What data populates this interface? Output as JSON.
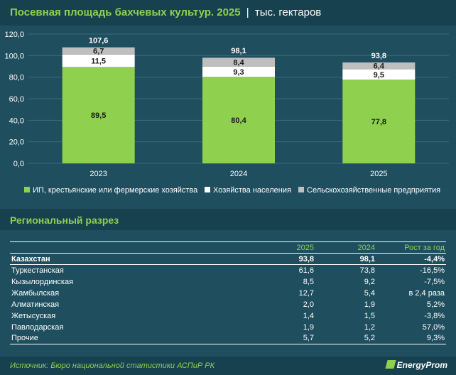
{
  "header": {
    "title": "Посевная площадь бахчевых культур. 2025",
    "separator": "|",
    "unit": "тыс. гектаров"
  },
  "chart_data": {
    "type": "bar",
    "stacked": true,
    "categories": [
      "2023",
      "2024",
      "2025"
    ],
    "series": [
      {
        "name": "ИП, крестьянские или фермерские хозяйства",
        "values": [
          89.5,
          80.4,
          77.8
        ],
        "labels": [
          "89,5",
          "80,4",
          "77,8"
        ],
        "color": "#8fd14f"
      },
      {
        "name": "Хозяйства населения",
        "values": [
          11.5,
          9.3,
          9.5
        ],
        "labels": [
          "11,5",
          "9,3",
          "9,5"
        ],
        "color": "#ffffff"
      },
      {
        "name": "Сельскохозяйственные предприятия",
        "values": [
          6.7,
          8.4,
          6.4
        ],
        "labels": [
          "6,7",
          "8,4",
          "6,4"
        ],
        "color": "#bfbfbf"
      }
    ],
    "totals": [
      "107,6",
      "98,1",
      "93,8"
    ],
    "yticks": [
      "0,0",
      "20,0",
      "40,0",
      "60,0",
      "80,0",
      "100,0",
      "120,0"
    ],
    "ylim": [
      0,
      120
    ],
    "grid": true,
    "legend_position": "bottom"
  },
  "section": {
    "title": "Региональный разрез"
  },
  "table": {
    "headers": [
      "",
      "2025",
      "2024",
      "Рост за год"
    ],
    "rows": [
      {
        "name": "Казахстан",
        "v2025": "93,8",
        "v2024": "98,1",
        "growth": "-4,4%"
      },
      {
        "name": "Туркестанская",
        "v2025": "61,6",
        "v2024": "73,8",
        "growth": "-16,5%"
      },
      {
        "name": "Кызылординская",
        "v2025": "8,5",
        "v2024": "9,2",
        "growth": "-7,5%"
      },
      {
        "name": "Жамбылская",
        "v2025": "12,7",
        "v2024": "5,4",
        "growth": "в 2,4 раза"
      },
      {
        "name": "Алматинская",
        "v2025": "2,0",
        "v2024": "1,9",
        "growth": "5,2%"
      },
      {
        "name": "Жетысуская",
        "v2025": "1,4",
        "v2024": "1,5",
        "growth": "-3,8%"
      },
      {
        "name": "Павлодарская",
        "v2025": "1,9",
        "v2024": "1,2",
        "growth": "57,0%"
      },
      {
        "name": "Прочие",
        "v2025": "5,7",
        "v2024": "5,2",
        "growth": "9,3%"
      }
    ]
  },
  "footer": {
    "source": "Источник: Бюро национальной статистики АСПиР РК",
    "brand": "EnergyProm"
  }
}
